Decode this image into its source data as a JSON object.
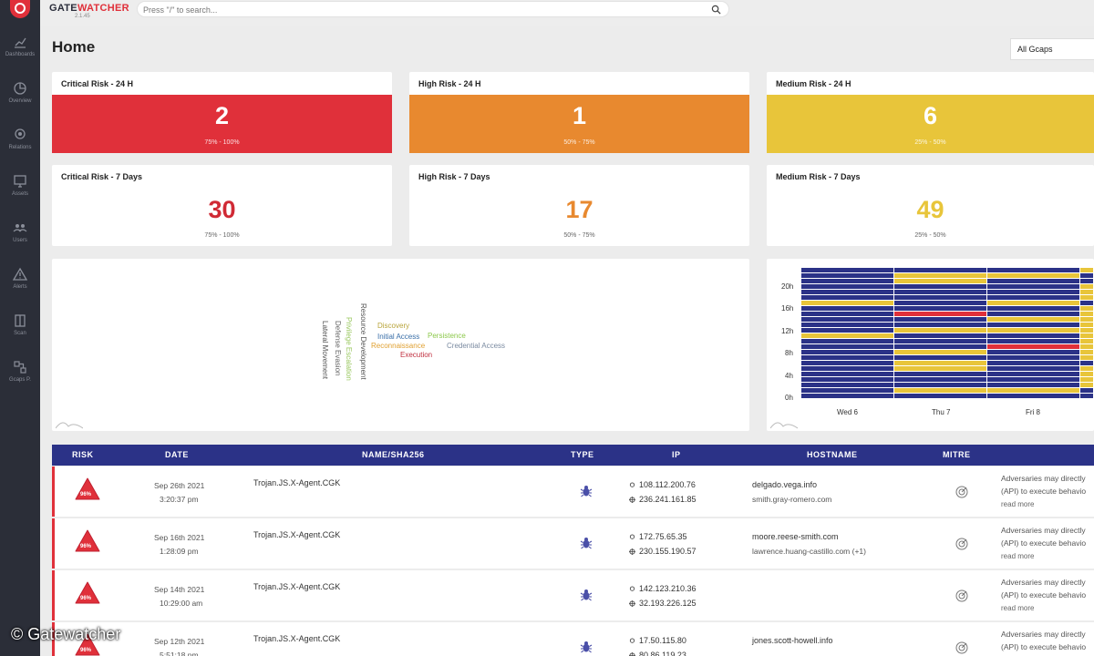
{
  "brand": {
    "name_a": "GATE",
    "name_b": "WATCHER",
    "version": "2.1.45"
  },
  "search": {
    "placeholder": "Press \"/\" to search..."
  },
  "sidebar": {
    "items": [
      {
        "label": "Dashboards",
        "icon": "chart-icon"
      },
      {
        "label": "Overview",
        "icon": "overview-icon"
      },
      {
        "label": "Relations",
        "icon": "relations-icon"
      },
      {
        "label": "Assets",
        "icon": "monitor-icon"
      },
      {
        "label": "Users",
        "icon": "users-icon"
      },
      {
        "label": "Alerts",
        "icon": "alert-icon"
      },
      {
        "label": "Scan",
        "icon": "scan-icon"
      },
      {
        "label": "Gcaps P.",
        "icon": "gcaps-icon"
      }
    ]
  },
  "page": {
    "title": "Home",
    "gcap_filter": "All Gcaps"
  },
  "risk_cards": {
    "critical_24h": {
      "title": "Critical Risk - 24 H",
      "value": "2",
      "range": "75% - 100%"
    },
    "high_24h": {
      "title": "High Risk - 24 H",
      "value": "1",
      "range": "50% - 75%"
    },
    "medium_24h": {
      "title": "Medium Risk - 24 H",
      "value": "6",
      "range": "25% - 50%"
    },
    "critical_7d": {
      "title": "Critical Risk - 7 Days",
      "value": "30",
      "range": "75% - 100%"
    },
    "high_7d": {
      "title": "High Risk - 7 Days",
      "value": "17",
      "range": "50% - 75%"
    },
    "medium_7d": {
      "title": "Medium Risk - 7 Days",
      "value": "49",
      "range": "25% - 50%"
    }
  },
  "colors": {
    "critical": "#e0303a",
    "high": "#e8892f",
    "medium": "#e8c53a",
    "navy": "#2b3287"
  },
  "wordcloud": {
    "words": [
      {
        "text": "Discovery",
        "color": "#b8a43a"
      },
      {
        "text": "Initial Access",
        "color": "#3a6fa8"
      },
      {
        "text": "Persistence",
        "color": "#8cc84a"
      },
      {
        "text": "Reconnaissance",
        "color": "#e0a030"
      },
      {
        "text": "Credential Access",
        "color": "#7a8aa0"
      },
      {
        "text": "Execution",
        "color": "#c03040"
      },
      {
        "text": "Resource Development",
        "color": "#555555"
      },
      {
        "text": "Privilege Escalation",
        "color": "#9ac860"
      },
      {
        "text": "Defense Evasion",
        "color": "#666666"
      },
      {
        "text": "Lateral Movement",
        "color": "#555555"
      }
    ]
  },
  "heatmap": {
    "y_labels": [
      "20h",
      "16h",
      "12h",
      "8h",
      "4h",
      "0h"
    ],
    "x_labels": [
      "Wed 6",
      "Thu 7",
      "Fri 8"
    ]
  },
  "table": {
    "headers": [
      "RISK",
      "DATE",
      "NAME/SHA256",
      "TYPE",
      "IP",
      "HOSTNAME",
      "MITRE"
    ],
    "rows": [
      {
        "risk": "96%",
        "date": "Sep 26th 2021",
        "time": "3:20:37 pm",
        "name": "Trojan.JS.X-Agent.CGK",
        "ip_src": "108.112.200.76",
        "ip_dst": "236.241.161.85",
        "host1": "delgado.vega.info",
        "host2": "smith.gray-romero.com",
        "mitre_a": "Adversaries may directly",
        "mitre_b": "(API) to execute behavio",
        "more": "read more"
      },
      {
        "risk": "96%",
        "date": "Sep 16th 2021",
        "time": "1:28:09 pm",
        "name": "Trojan.JS.X-Agent.CGK",
        "ip_src": "172.75.65.35",
        "ip_dst": "230.155.190.57",
        "host1": "moore.reese-smith.com",
        "host2": "lawrence.huang-castillo.com (+1)",
        "mitre_a": "Adversaries may directly",
        "mitre_b": "(API) to execute behavio",
        "more": "read more"
      },
      {
        "risk": "96%",
        "date": "Sep 14th 2021",
        "time": "10:29:00 am",
        "name": "Trojan.JS.X-Agent.CGK",
        "ip_src": "142.123.210.36",
        "ip_dst": "32.193.226.125",
        "host1": "",
        "host2": "",
        "mitre_a": "Adversaries may directly",
        "mitre_b": "(API) to execute behavio",
        "more": "read more"
      },
      {
        "risk": "96%",
        "date": "Sep 12th 2021",
        "time": "5:51:18 pm",
        "name": "Trojan.JS.X-Agent.CGK",
        "ip_src": "17.50.115.80",
        "ip_dst": "80.86.119.23",
        "host1": "jones.scott-howell.info",
        "host2": "",
        "mitre_a": "Adversaries may directly",
        "mitre_b": "(API) to execute behavio",
        "more": ""
      }
    ]
  },
  "watermark": "© Gatewatcher"
}
